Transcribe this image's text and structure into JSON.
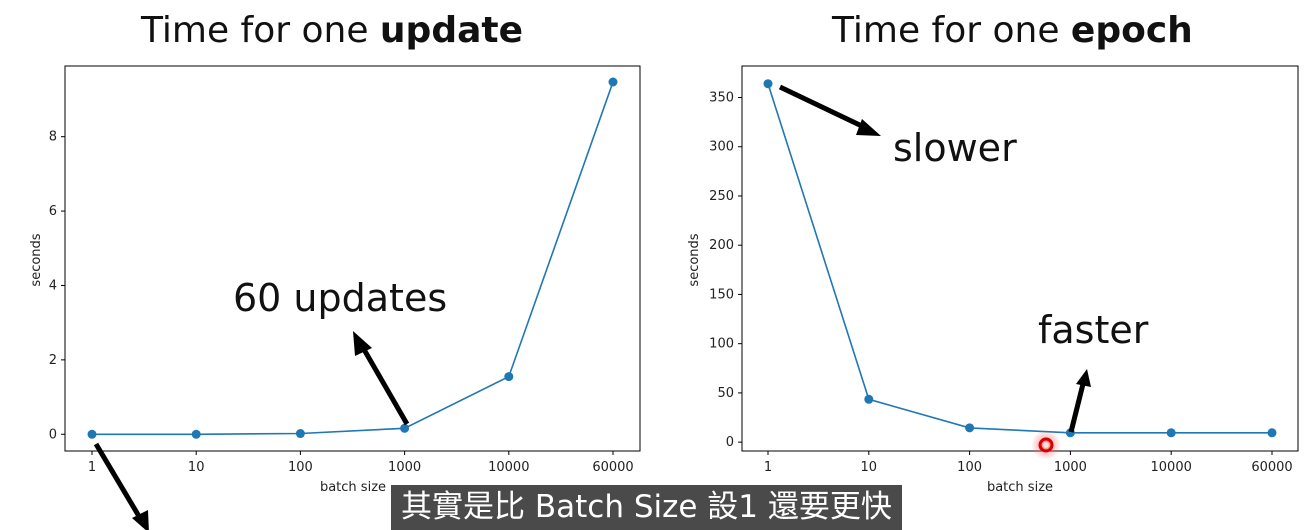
{
  "titles": {
    "left_prefix": "Time for one ",
    "left_bold": "update",
    "right_prefix": "Time for one ",
    "right_bold": "epoch"
  },
  "annotations": {
    "updates": "60 updates",
    "slower": "slower",
    "faster": "faster"
  },
  "subtitle": "其實是比 Batch Size 設1 還要更快",
  "colors": {
    "line": "#1f77b4",
    "arrow": "#000000",
    "cursor": "#e8222a",
    "subtitle_bg": "#4a4a4a"
  },
  "chart_data": [
    {
      "type": "line",
      "title": "Time for one update",
      "xlabel": "batch size",
      "ylabel": "seconds",
      "categories": [
        "1",
        "10",
        "100",
        "1000",
        "10000",
        "60000"
      ],
      "values": [
        0,
        0,
        0.02,
        0.16,
        1.55,
        9.47
      ],
      "yticks": [
        0,
        2,
        4,
        6,
        8
      ],
      "ylim": [
        -0.45,
        9.9
      ],
      "grid": false
    },
    {
      "type": "line",
      "title": "Time for one epoch",
      "xlabel": "batch size",
      "ylabel": "seconds",
      "categories": [
        "1",
        "10",
        "100",
        "1000",
        "10000",
        "60000"
      ],
      "values": [
        364,
        43.5,
        14.5,
        9.5,
        9.5,
        9.5
      ],
      "yticks": [
        0,
        50,
        100,
        150,
        200,
        250,
        300,
        350
      ],
      "ylim": [
        -9,
        382
      ],
      "grid": false
    }
  ]
}
